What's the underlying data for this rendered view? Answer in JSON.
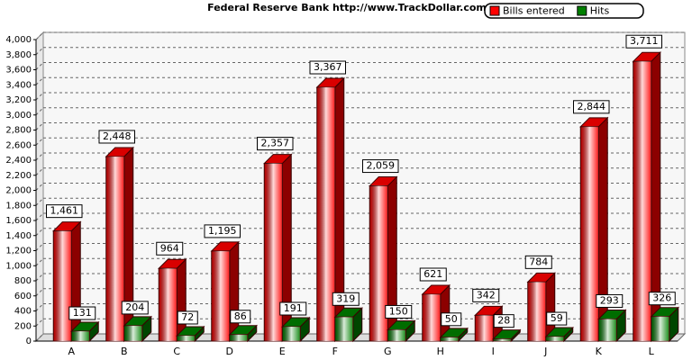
{
  "chart_data": {
    "type": "bar3d",
    "title": "Federal Reserve Bank  http://www.TrackDollar.com",
    "categories": [
      "A",
      "B",
      "C",
      "D",
      "E",
      "F",
      "G",
      "H",
      "I",
      "J",
      "K",
      "L"
    ],
    "series": [
      {
        "name": "Bills entered",
        "color": "#ff0000",
        "values": [
          1461,
          2448,
          964,
          1195,
          2357,
          3367,
          2059,
          621,
          342,
          784,
          2844,
          3711
        ],
        "value_labels": [
          "1,461",
          "2,448",
          "964",
          "1,195",
          "2,357",
          "3,367",
          "2,059",
          "621",
          "342",
          "784",
          "2,844",
          "3,711"
        ]
      },
      {
        "name": "Hits",
        "color": "#008000",
        "values": [
          131,
          204,
          72,
          86,
          191,
          319,
          150,
          50,
          28,
          59,
          293,
          326
        ]
      }
    ],
    "ylim": [
      0,
      4000
    ],
    "yticks": [
      0,
      200,
      400,
      600,
      800,
      {
        "value": 1000,
        "label": "1,000"
      },
      {
        "value": 1200,
        "label": "1,200"
      },
      {
        "value": 1400,
        "label": "1,400"
      },
      {
        "value": 1600,
        "label": "1,600"
      },
      {
        "value": 1800,
        "label": "1,800"
      },
      {
        "value": 2000,
        "label": "2,000"
      },
      {
        "value": 2200,
        "label": "2,200"
      },
      {
        "value": 2400,
        "label": "2,400"
      },
      {
        "value": 2600,
        "label": "2,600"
      },
      {
        "value": 2800,
        "label": "2,800"
      },
      {
        "value": 3000,
        "label": "3,000"
      },
      {
        "value": 3200,
        "label": "3,200"
      },
      {
        "value": 3400,
        "label": "3,400"
      },
      {
        "value": 3600,
        "label": "3,600"
      },
      {
        "value": 3800,
        "label": "3,800"
      },
      {
        "value": 4000,
        "label": "4,000"
      }
    ],
    "grid": true
  }
}
